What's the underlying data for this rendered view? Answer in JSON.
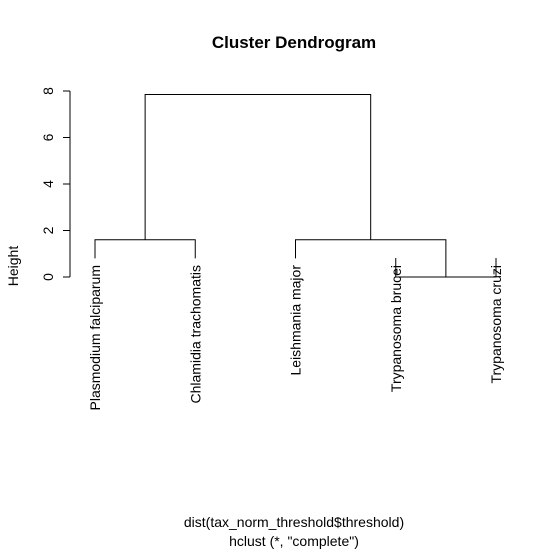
{
  "chart_data": {
    "type": "dendrogram",
    "title": "Cluster Dendrogram",
    "ylabel": "Height",
    "xlabel": "dist(tax_norm_threshold$threshold)",
    "sublabel": "hclust (*, \"complete\")",
    "ylim": [
      0,
      8
    ],
    "yticks": [
      0,
      2,
      4,
      6,
      8
    ],
    "leaves": [
      "Plasmodium falciparum",
      "Chlamidia trachomatis",
      "Leishmania major",
      "Trypanosoma brucei",
      "Trypanosoma cruzi"
    ],
    "merges": [
      {
        "left": "Trypanosoma brucei",
        "right": "Trypanosoma cruzi",
        "height": 0.0
      },
      {
        "left": "Plasmodium falciparum",
        "right": "Chlamidia trachomatis",
        "height": 1.6
      },
      {
        "left": "Leishmania major",
        "right": "merge-1",
        "height": 1.6
      },
      {
        "left": "merge-2",
        "right": "merge-3",
        "height": 7.85
      }
    ],
    "leaf_hang_height": 0.8
  }
}
